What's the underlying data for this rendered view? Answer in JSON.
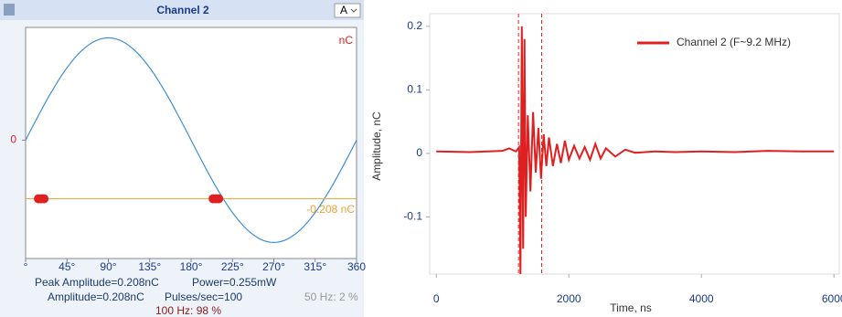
{
  "chart_data": [
    {
      "type": "scatter",
      "title": "Channel 2",
      "dropdown": "A",
      "unit": "nC",
      "xlim": [
        0,
        360
      ],
      "ylim": [
        -0.42,
        0.4
      ],
      "xticks": [
        {
          "value": 0,
          "label": "°"
        },
        {
          "value": 45,
          "label": "45°"
        },
        {
          "value": 90,
          "label": "90°"
        },
        {
          "value": 135,
          "label": "135°"
        },
        {
          "value": 180,
          "label": "180°"
        },
        {
          "value": 225,
          "label": "225°"
        },
        {
          "value": 270,
          "label": "270°"
        },
        {
          "value": 315,
          "label": "315°"
        },
        {
          "value": 360,
          "label": "360"
        }
      ],
      "yticks": [
        0
      ],
      "threshold": {
        "value": -0.208,
        "label": "-0.208 nC",
        "color": "#f0a030"
      },
      "series": [
        {
          "x": [
            14,
            17,
            20,
            204,
            207,
            210
          ],
          "values": [
            -0.208,
            -0.208,
            -0.208,
            -0.208,
            -0.208,
            -0.208
          ],
          "color": "#e02020"
        }
      ],
      "footer": [
        "Peak Amplitude=0.208nC",
        "Power=0.255mW",
        "Amplitude=0.208nC",
        "Pulses/sec=100",
        "50 Hz: 2 %",
        "100 Hz: 98 %"
      ]
    },
    {
      "type": "line",
      "x_label": "Time, ns",
      "y_label": "Amplitude, nC",
      "xlim": [
        -100,
        6080
      ],
      "ylim": [
        -0.19,
        0.22
      ],
      "xticks": [
        0,
        2000,
        4000,
        6000
      ],
      "yticks": [
        0.2,
        0.1,
        0,
        -0.1
      ],
      "cursors": [
        1240,
        1590
      ],
      "series": [
        {
          "name": "Channel 2 (F~9.2 MHz)",
          "color": "#e02020",
          "x": [
            0,
            500,
            1000,
            1100,
            1200,
            1250,
            1270,
            1290,
            1310,
            1330,
            1350,
            1380,
            1420,
            1460,
            1500,
            1540,
            1580,
            1620,
            1660,
            1700,
            1760,
            1820,
            1880,
            1940,
            2000,
            2080,
            2160,
            2240,
            2320,
            2400,
            2480,
            2560,
            2700,
            2850,
            3000,
            3300,
            3600,
            4000,
            4500,
            5000,
            5500,
            6000
          ],
          "values": [
            0.003,
            0.002,
            0.004,
            0.008,
            0.003,
            0.01,
            -0.19,
            0.2,
            -0.15,
            0.18,
            -0.1,
            0.06,
            -0.06,
            0.065,
            -0.03,
            0.04,
            -0.04,
            0.03,
            -0.02,
            0.025,
            -0.02,
            0.015,
            -0.015,
            0.02,
            -0.01,
            0.012,
            -0.008,
            0.01,
            -0.01,
            0.015,
            -0.008,
            0.008,
            -0.005,
            0.006,
            0.001,
            0.003,
            0.002,
            0.003,
            0.002,
            0.004,
            0.003,
            0.003
          ]
        }
      ]
    }
  ]
}
